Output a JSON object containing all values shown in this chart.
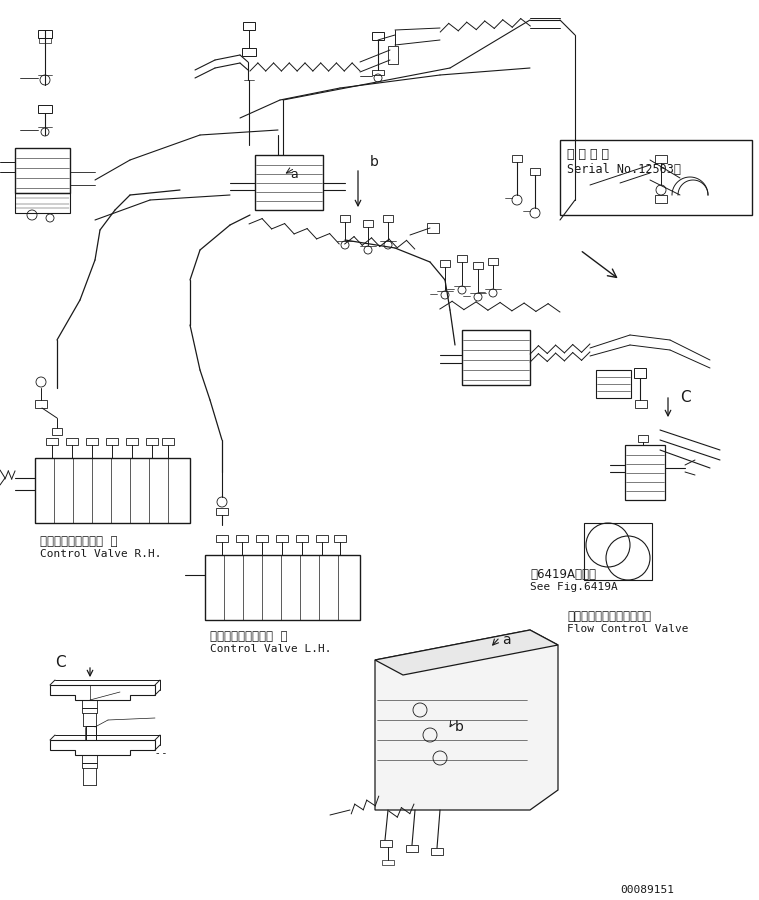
{
  "bg_color": "#ffffff",
  "lc": "#1a1a1a",
  "fig_width": 7.59,
  "fig_height": 9.0,
  "dpi": 100,
  "serial_text1": "適 用 号 機",
  "serial_text2": "Serial No.12503〜",
  "label_cvr1": "コントロールバルブ  右",
  "label_cvr2": "Control Valve R.H.",
  "label_cvl1": "コントロールバルブ  左",
  "label_cvl2": "Control Valve L.H.",
  "label_fig1": "第6419A図参照",
  "label_fig2": "See Fig.6419A",
  "label_fcv1": "フローコントロールバルブ",
  "label_fcv2": "Flow Control Valve",
  "doc_num": "00089151"
}
